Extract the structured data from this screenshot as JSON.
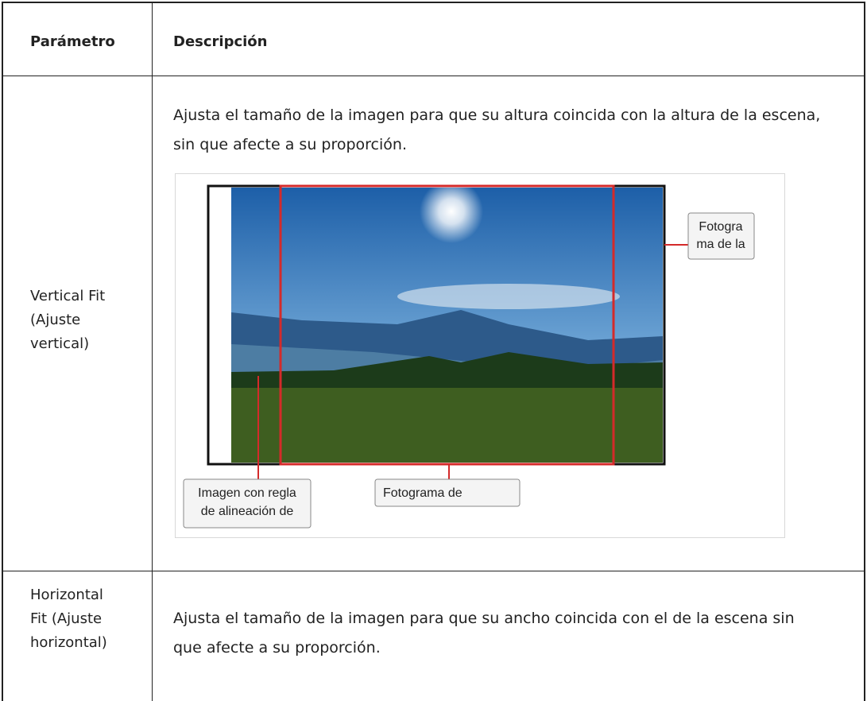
{
  "table": {
    "headers": [
      "Parámetro",
      "Descripción"
    ],
    "rows": [
      {
        "parameter": [
          "Vertical Fit",
          "(Ajuste",
          "vertical)"
        ],
        "description": "Ajusta el tamaño de la imagen para que su altura coincida con la altura de la escena, sin que afecte a su proporción.",
        "figure": {
          "labels": [
            [
              "Imagen con regla",
              "de alineación de"
            ],
            [
              "Fotograma de"
            ],
            [
              "Fotogra",
              "ma de la"
            ]
          ]
        }
      },
      {
        "parameter": [
          "Horizontal",
          "Fit (Ajuste",
          "horizontal)"
        ],
        "description": "Ajusta el tamaño de la imagen para que su ancho coincida con el de la escena sin que afecte a su proporción."
      }
    ]
  }
}
